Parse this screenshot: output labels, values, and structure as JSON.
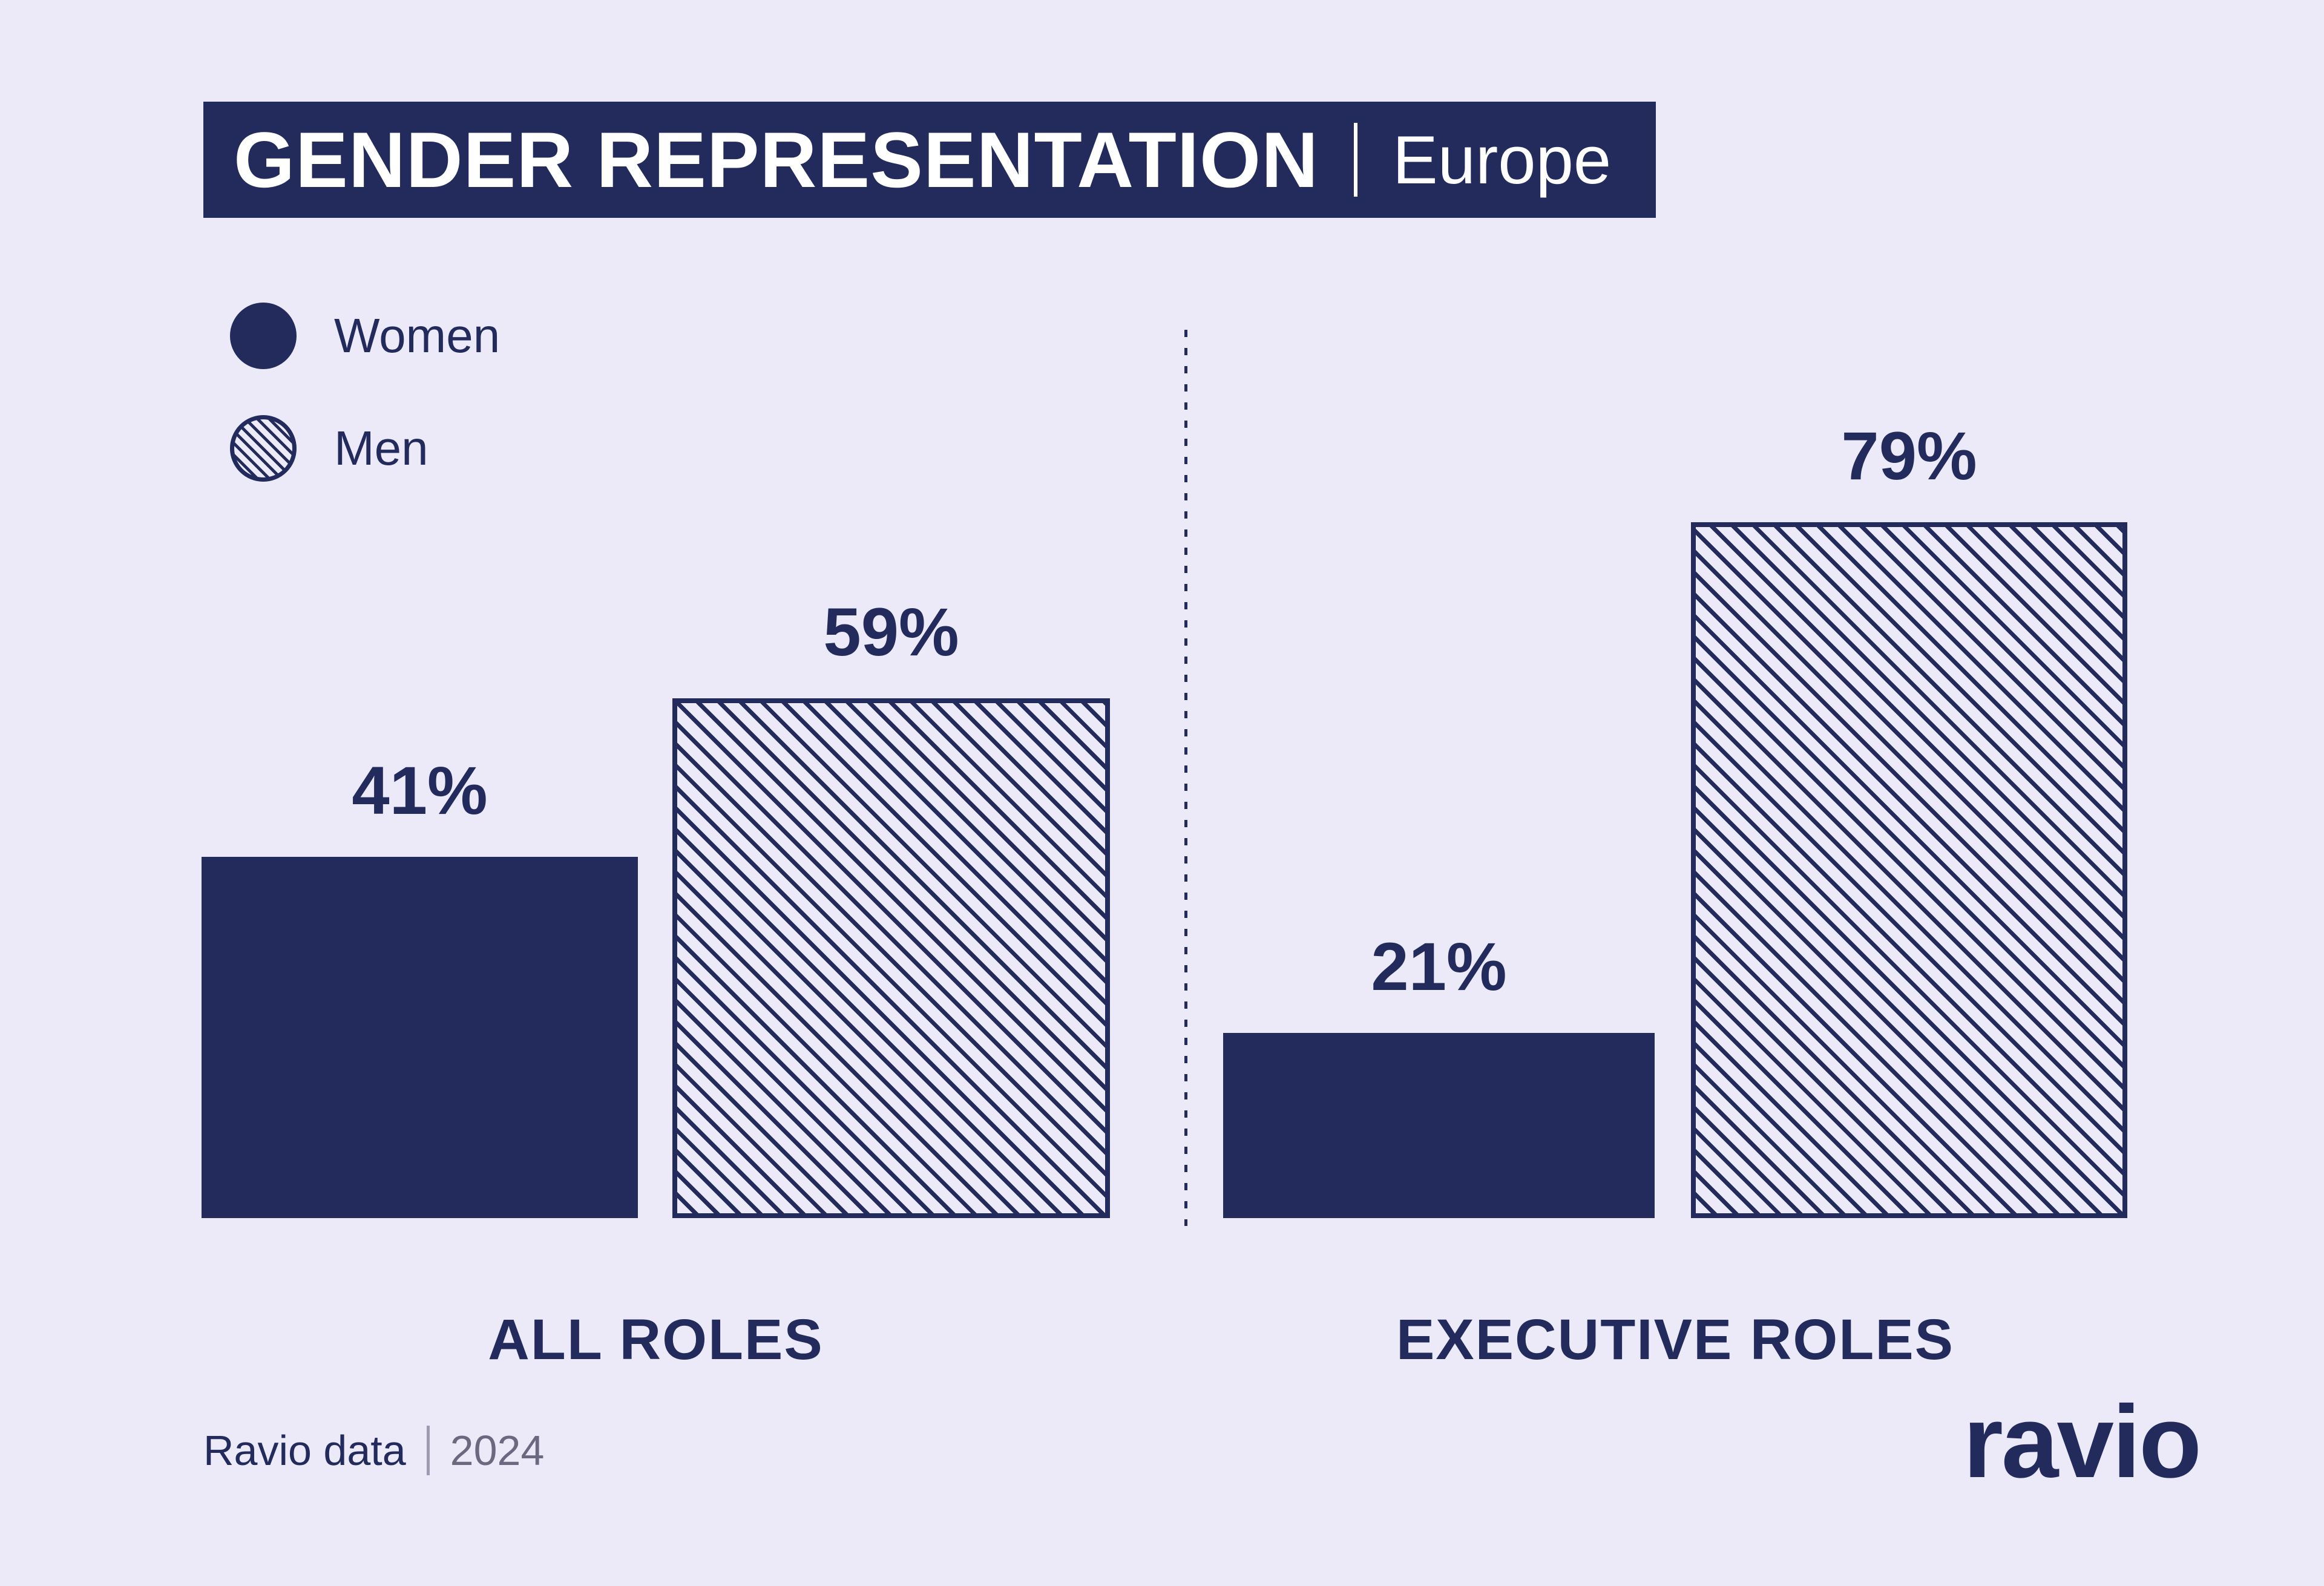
{
  "title": {
    "main": "GENDER REPRESENTATION",
    "region": "Europe"
  },
  "chart_data": {
    "type": "bar",
    "title": "GENDER REPRESENTATION",
    "subtitle": "Europe",
    "unit": "%",
    "ylim": [
      0,
      100
    ],
    "grid": false,
    "legend_position": "top-left",
    "categories": [
      "ALL ROLES",
      "EXECUTIVE ROLES"
    ],
    "series": [
      {
        "name": "Women",
        "style": "solid",
        "values": [
          41,
          21
        ],
        "labels": [
          "41%",
          "21%"
        ]
      },
      {
        "name": "Men",
        "style": "hatched",
        "values": [
          59,
          79
        ],
        "labels": [
          "59%",
          "79%"
        ]
      }
    ]
  },
  "footer": {
    "source": "Ravio data",
    "year": "2024",
    "brand": "ravio"
  },
  "colors": {
    "navy": "#222B5C",
    "background": "#ECEAF8",
    "muted_text": "#6B6980"
  }
}
